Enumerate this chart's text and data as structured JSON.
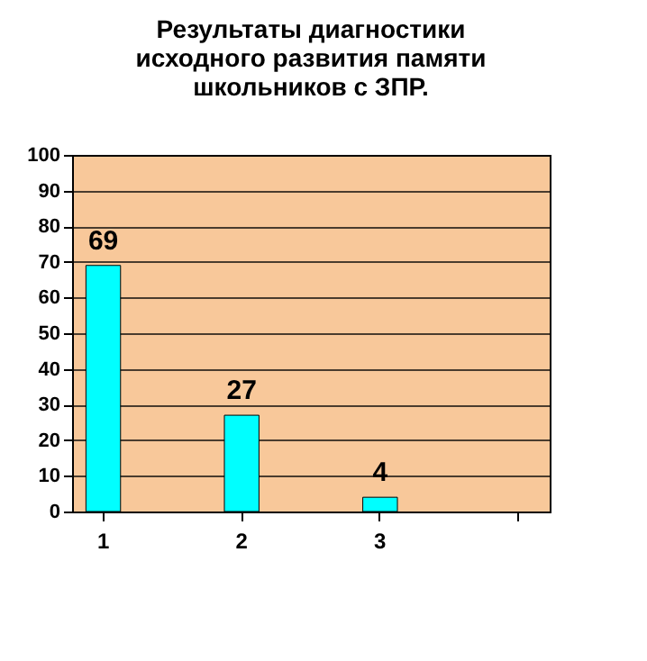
{
  "chart_data": {
    "type": "bar",
    "title": "Результаты диагностики исходного развития памяти школьников с ЗПР.",
    "categories": [
      "1",
      "2",
      "3",
      null
    ],
    "values": [
      69,
      27,
      4,
      null
    ],
    "color": "#00ffff",
    "ylim": [
      0,
      100
    ],
    "yticks": [
      0,
      10,
      20,
      30,
      40,
      50,
      60,
      70,
      80,
      90,
      100
    ],
    "grid": "y",
    "data_labels": true
  }
}
